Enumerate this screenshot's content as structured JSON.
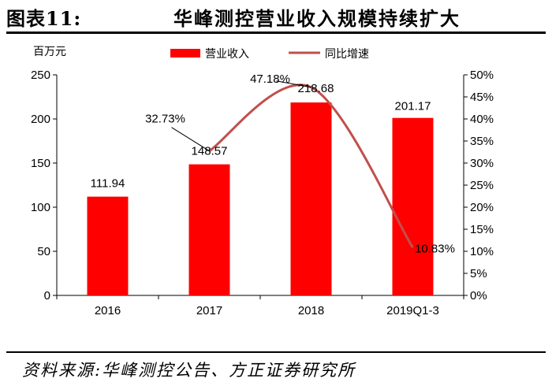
{
  "header": {
    "figure_number": "图表11:",
    "title": "华峰测控营业收入规模持续扩大"
  },
  "footer": {
    "source": "资料来源:华峰测控公告、方正证券研究所"
  },
  "colors": {
    "bar": "#ff0000",
    "line": "#c0504d",
    "axis": "#000000"
  },
  "chart_data": {
    "type": "bar",
    "categories": [
      "2016",
      "2017",
      "2018",
      "2019Q1-3"
    ],
    "ylabel": "百万元",
    "ylim": [
      0,
      250
    ],
    "yticks": [
      0,
      50,
      100,
      150,
      200,
      250
    ],
    "y2lim": [
      0,
      50
    ],
    "y2ticks": [
      "0%",
      "5%",
      "10%",
      "15%",
      "20%",
      "25%",
      "30%",
      "35%",
      "40%",
      "45%",
      "50%"
    ],
    "legend_position": "top-center",
    "grid": false,
    "series": [
      {
        "name": "营业收入",
        "type": "bar",
        "axis": "left",
        "values": [
          111.94,
          148.57,
          218.68,
          201.17
        ],
        "labels": [
          "111.94",
          "148.57",
          "218.68",
          "201.17"
        ]
      },
      {
        "name": "同比增速",
        "type": "line",
        "axis": "right",
        "points": [
          {
            "category": "2017",
            "value": 32.73,
            "label": "32.73%"
          },
          {
            "category": "2018",
            "value": 47.18,
            "label": "47.18%"
          },
          {
            "category": "2019Q1-3",
            "value": 10.83,
            "label": "10.83%"
          }
        ]
      }
    ]
  }
}
